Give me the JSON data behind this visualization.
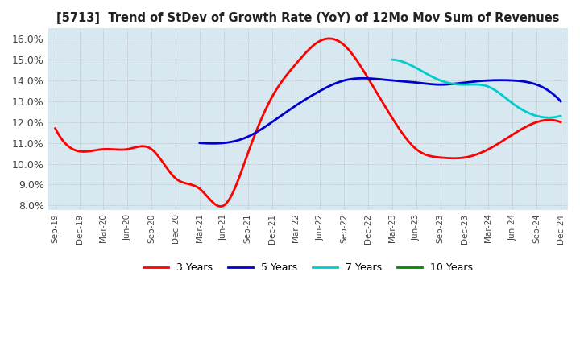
{
  "title": "[5713]  Trend of StDev of Growth Rate (YoY) of 12Mo Mov Sum of Revenues",
  "ylim": [
    0.078,
    0.165
  ],
  "yticks": [
    0.08,
    0.09,
    0.1,
    0.11,
    0.12,
    0.13,
    0.14,
    0.15,
    0.16
  ],
  "bg_color": "#ffffff",
  "plot_bg_color": "#d8e8f0",
  "grid_color": "#ffffff",
  "series": {
    "3 Years": {
      "color": "#ff0000",
      "data": [
        [
          "Sep-19",
          0.117
        ],
        [
          "Dec-19",
          0.106
        ],
        [
          "Mar-20",
          0.107
        ],
        [
          "Jun-20",
          0.107
        ],
        [
          "Sep-20",
          0.107
        ],
        [
          "Dec-20",
          0.093
        ],
        [
          "Mar-21",
          0.088
        ],
        [
          "Jun-21",
          0.08
        ],
        [
          "Sep-21",
          0.105
        ],
        [
          "Dec-21",
          0.132
        ],
        [
          "Mar-22",
          0.148
        ],
        [
          "Jun-22",
          0.159
        ],
        [
          "Sep-22",
          0.157
        ],
        [
          "Dec-22",
          0.141
        ],
        [
          "Mar-23",
          0.122
        ],
        [
          "Jun-23",
          0.107
        ],
        [
          "Sep-23",
          0.103
        ],
        [
          "Dec-23",
          0.103
        ],
        [
          "Mar-24",
          0.107
        ],
        [
          "Jun-24",
          0.114
        ],
        [
          "Sep-24",
          0.12
        ],
        [
          "Dec-24",
          0.12
        ]
      ]
    },
    "5 Years": {
      "color": "#0000cc",
      "data": [
        [
          "Sep-19",
          null
        ],
        [
          "Dec-19",
          null
        ],
        [
          "Mar-20",
          null
        ],
        [
          "Jun-20",
          null
        ],
        [
          "Sep-20",
          null
        ],
        [
          "Dec-20",
          null
        ],
        [
          "Mar-21",
          0.11
        ],
        [
          "Jun-21",
          0.11
        ],
        [
          "Sep-21",
          0.113
        ],
        [
          "Dec-21",
          0.12
        ],
        [
          "Mar-22",
          0.128
        ],
        [
          "Jun-22",
          0.135
        ],
        [
          "Sep-22",
          0.14
        ],
        [
          "Dec-22",
          0.141
        ],
        [
          "Mar-23",
          0.14
        ],
        [
          "Jun-23",
          0.139
        ],
        [
          "Sep-23",
          0.138
        ],
        [
          "Dec-23",
          0.139
        ],
        [
          "Mar-24",
          0.14
        ],
        [
          "Jun-24",
          0.14
        ],
        [
          "Sep-24",
          0.138
        ],
        [
          "Dec-24",
          0.13
        ]
      ]
    },
    "7 Years": {
      "color": "#00cccc",
      "data": [
        [
          "Sep-19",
          null
        ],
        [
          "Dec-19",
          null
        ],
        [
          "Mar-20",
          null
        ],
        [
          "Jun-20",
          null
        ],
        [
          "Sep-20",
          null
        ],
        [
          "Dec-20",
          null
        ],
        [
          "Mar-21",
          null
        ],
        [
          "Jun-21",
          null
        ],
        [
          "Sep-21",
          null
        ],
        [
          "Dec-21",
          null
        ],
        [
          "Mar-22",
          null
        ],
        [
          "Jun-22",
          null
        ],
        [
          "Sep-22",
          null
        ],
        [
          "Dec-22",
          null
        ],
        [
          "Mar-23",
          0.15
        ],
        [
          "Jun-23",
          0.146
        ],
        [
          "Sep-23",
          0.14
        ],
        [
          "Dec-23",
          0.138
        ],
        [
          "Mar-24",
          0.137
        ],
        [
          "Jun-24",
          0.129
        ],
        [
          "Sep-24",
          0.123
        ],
        [
          "Dec-24",
          0.123
        ]
      ]
    },
    "10 Years": {
      "color": "#008800",
      "data": [
        [
          "Sep-19",
          null
        ],
        [
          "Dec-19",
          null
        ],
        [
          "Mar-20",
          null
        ],
        [
          "Jun-20",
          null
        ],
        [
          "Sep-20",
          null
        ],
        [
          "Dec-20",
          null
        ],
        [
          "Mar-21",
          null
        ],
        [
          "Jun-21",
          null
        ],
        [
          "Sep-21",
          null
        ],
        [
          "Dec-21",
          null
        ],
        [
          "Mar-22",
          null
        ],
        [
          "Jun-22",
          null
        ],
        [
          "Sep-22",
          null
        ],
        [
          "Dec-22",
          null
        ],
        [
          "Mar-23",
          null
        ],
        [
          "Jun-23",
          null
        ],
        [
          "Sep-23",
          null
        ],
        [
          "Dec-23",
          null
        ],
        [
          "Mar-24",
          null
        ],
        [
          "Jun-24",
          null
        ],
        [
          "Sep-24",
          null
        ],
        [
          "Dec-24",
          null
        ]
      ]
    }
  },
  "xtick_labels": [
    "Sep-19",
    "Dec-19",
    "Mar-20",
    "Jun-20",
    "Sep-20",
    "Dec-20",
    "Mar-21",
    "Jun-21",
    "Sep-21",
    "Dec-21",
    "Mar-22",
    "Jun-22",
    "Sep-22",
    "Dec-22",
    "Mar-23",
    "Jun-23",
    "Sep-23",
    "Dec-23",
    "Mar-24",
    "Jun-24",
    "Sep-24",
    "Dec-24"
  ],
  "legend_order": [
    "3 Years",
    "5 Years",
    "7 Years",
    "10 Years"
  ]
}
